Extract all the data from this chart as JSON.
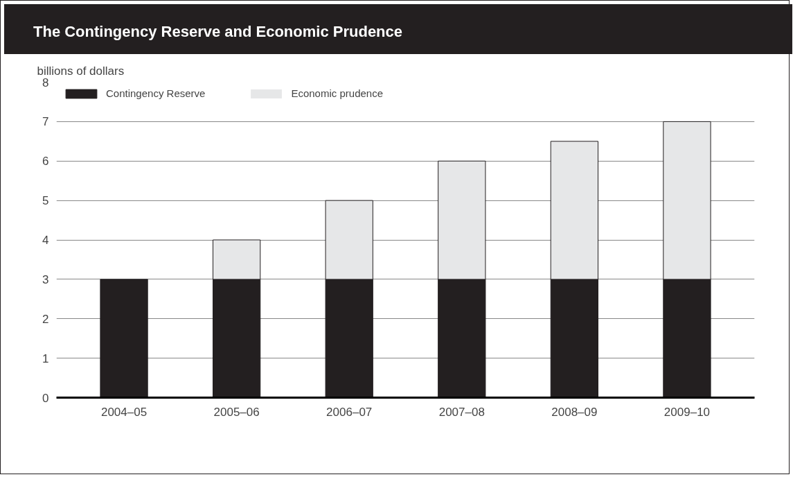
{
  "chart_data": {
    "type": "bar",
    "title": "The Contingency Reserve and Economic Prudence",
    "ylabel": "billions of dollars",
    "categories": [
      "2004–05",
      "2005–06",
      "2006–07",
      "2007–08",
      "2008–09",
      "2009–10"
    ],
    "stacked": true,
    "series": [
      {
        "name": "Contingency Reserve",
        "color": "#231f20",
        "values": [
          3,
          3,
          3,
          3,
          3,
          3
        ]
      },
      {
        "name": "Economic prudence",
        "color": "#e6e7e8",
        "values": [
          0,
          1,
          2,
          3,
          3.5,
          4
        ]
      }
    ],
    "ylim": [
      0,
      8
    ],
    "yticks": [
      0,
      1,
      2,
      3,
      4,
      5,
      6,
      7,
      8
    ],
    "grid": "y",
    "legend": "top left"
  }
}
